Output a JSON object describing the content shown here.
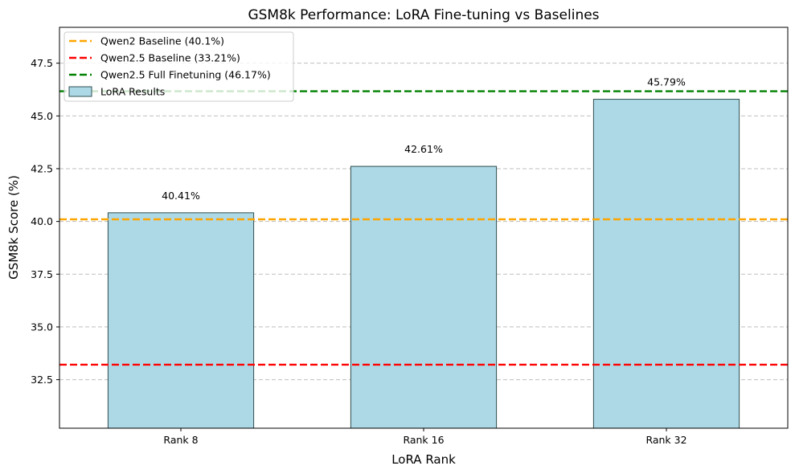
{
  "chart_data": {
    "type": "bar",
    "title": "GSM8k Performance: LoRA Fine-tuning vs Baselines",
    "xlabel": "LoRA Rank",
    "ylabel": "GSM8k Score (%)",
    "categories": [
      "Rank 8",
      "Rank 16",
      "Rank 32"
    ],
    "series": [
      {
        "name": "LoRA Results",
        "values": [
          40.41,
          42.61,
          45.79
        ],
        "value_labels": [
          "40.41%",
          "42.61%",
          "45.79%"
        ],
        "color": "#add8e6",
        "edgecolor": "#2f4f4f"
      }
    ],
    "reference_lines": [
      {
        "name": "Qwen2 Baseline (40.1%)",
        "value": 40.1,
        "color": "#ffa500",
        "style": "dashed"
      },
      {
        "name": "Qwen2.5 Baseline (33.21%)",
        "value": 33.21,
        "color": "#ff0000",
        "style": "dashed"
      },
      {
        "name": "Qwen2.5 Full Finetuning (46.17%)",
        "value": 46.17,
        "color": "#008000",
        "style": "dashed"
      }
    ],
    "ylim": [
      30.2,
      49.2
    ],
    "yticks": [
      32.5,
      35.0,
      37.5,
      40.0,
      42.5,
      45.0,
      47.5
    ],
    "ytick_labels": [
      "32.5",
      "35.0",
      "37.5",
      "40.0",
      "42.5",
      "45.0",
      "47.5"
    ],
    "grid": "y-dashed",
    "legend_position": "upper-left"
  }
}
